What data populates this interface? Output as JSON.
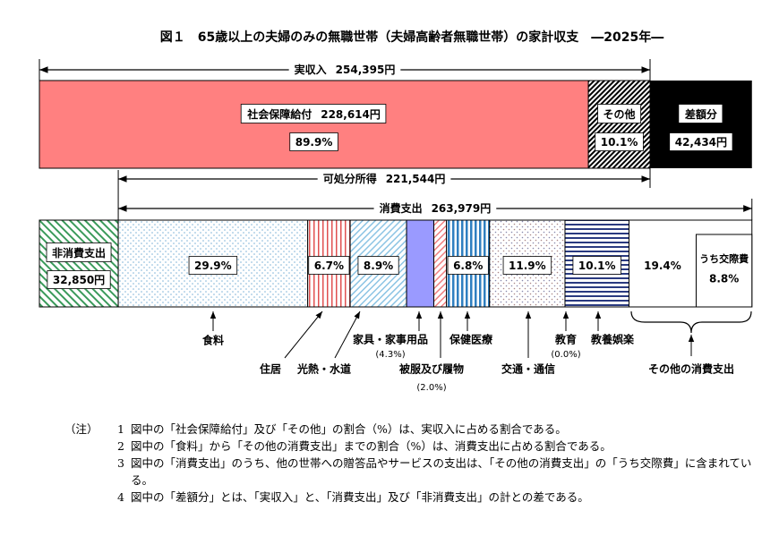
{
  "title": "図１　65歳以上の夫婦のみの無職世帯（夫婦高齢者無職世帯）の家計収支　―2025年―",
  "income": {
    "label": "実収入",
    "amount": 254395,
    "amount_label": "254,395円",
    "segments": [
      {
        "name": "社会保障給付",
        "amount": 228614,
        "amount_label": "228,614円",
        "percent": 89.9,
        "percent_label": "89.9%"
      },
      {
        "name": "その他",
        "percent": 10.1,
        "percent_label": "10.1%"
      }
    ],
    "surplus": {
      "name": "差額分",
      "amount": 42434,
      "amount_label": "42,434円"
    }
  },
  "disposable": {
    "label": "可処分所得",
    "amount": 221544,
    "amount_label": "221,544円"
  },
  "non_consumption": {
    "name": "非消費支出",
    "amount": 32850,
    "amount_label": "32,850円"
  },
  "consumption": {
    "label": "消費支出",
    "amount": 263979,
    "amount_label": "263,979円",
    "categories": [
      {
        "name": "食料",
        "percent": 29.9,
        "percent_label": "29.9%"
      },
      {
        "name": "住居",
        "percent": 6.7,
        "percent_label": "6.7%"
      },
      {
        "name": "光熱・水道",
        "percent": 8.9,
        "percent_label": "8.9%"
      },
      {
        "name": "家具・家事用品",
        "percent": 4.3,
        "percent_label": "(4.3%)"
      },
      {
        "name": "被服及び履物",
        "percent": 2.0,
        "percent_label": "(2.0%)"
      },
      {
        "name": "保健医療",
        "percent": 6.8,
        "percent_label": "6.8%"
      },
      {
        "name": "交通・通信",
        "percent": 11.9,
        "percent_label": "11.9%"
      },
      {
        "name": "教育",
        "percent": 0.0,
        "percent_label": "(0.0%)"
      },
      {
        "name": "教養娯楽",
        "percent": 10.1,
        "percent_label": "10.1%"
      },
      {
        "name": "その他の消費支出",
        "percent": 19.4,
        "percent_label": "19.4%"
      }
    ],
    "sub": {
      "name": "うち交際費",
      "percent": 8.8,
      "percent_label": "8.8%"
    }
  },
  "notes": {
    "marker": "（注）",
    "items": [
      {
        "number": "1",
        "text": "図中の「社会保障給付」及び「その他」の割合（%）は、実収入に占める割合である。"
      },
      {
        "number": "2",
        "text": "図中の「食料」から「その他の消費支出」までの割合（%）は、消費支出に占める割合である。"
      },
      {
        "number": "3",
        "text": "図中の「消費支出」のうち、他の世帯への贈答品やサービスの支出は、「その他の消費支出」の「うち交際費」に含まれている。"
      },
      {
        "number": "4",
        "text": "図中の「差額分」とは、「実収入」と、「消費支出」及び「非消費支出」の計との差である。"
      }
    ]
  }
}
